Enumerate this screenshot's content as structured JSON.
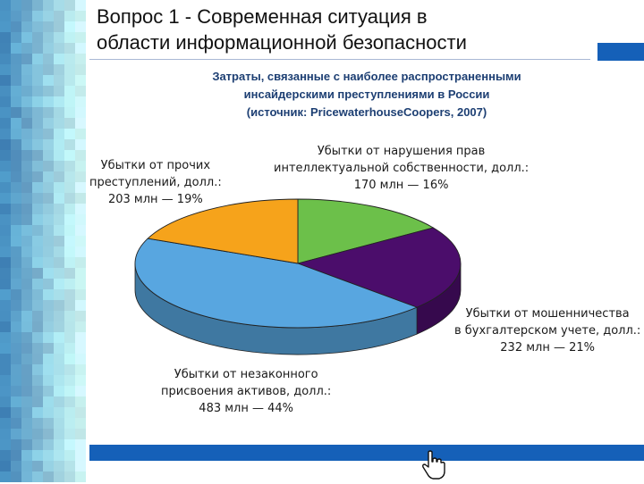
{
  "slide": {
    "title_line1": "Вопрос 1 - Современная ситуация в",
    "title_line2": "области информационной безопасности",
    "subtitle_line1": "Затраты, связанные с наиболее распространенными",
    "subtitle_line2": "инсайдерскими преступлениями в России",
    "subtitle_line3": "(источник: PricewaterhouseCoopers, 2007)"
  },
  "colors": {
    "accent_blue": "#1560b8",
    "slice_green": "#6cc04a",
    "slice_purple": "#4b0d6b",
    "slice_blue": "#58a6e0",
    "slice_orange": "#f6a31b"
  },
  "chart_data": {
    "type": "pie",
    "title": "Затраты, связанные с наиболее распространенными инсайдерскими преступлениями в России (источник: PricewaterhouseCoopers, 2007)",
    "slices": [
      {
        "label_line1": "Убытки от нарушения прав",
        "label_line2": "интеллектуальной собственности, долл.:",
        "label_line3": "170 млн — 16%",
        "value": 170,
        "percent": 16,
        "color": "#6cc04a"
      },
      {
        "label_line1": "Убытки от мошенничества",
        "label_line2": "в бухгалтерском учете, долл.:",
        "label_line3": "232 млн — 21%",
        "value": 232,
        "percent": 21,
        "color": "#4b0d6b"
      },
      {
        "label_line1": "Убытки от незаконного",
        "label_line2": "присвоения активов, долл.:",
        "label_line3": "483 млн — 44%",
        "value": 483,
        "percent": 44,
        "color": "#58a6e0"
      },
      {
        "label_line1": "Убытки от прочих",
        "label_line2": "преступлений, долл.:",
        "label_line3": "203 млн — 19%",
        "value": 203,
        "percent": 19,
        "color": "#f6a31b"
      }
    ]
  }
}
